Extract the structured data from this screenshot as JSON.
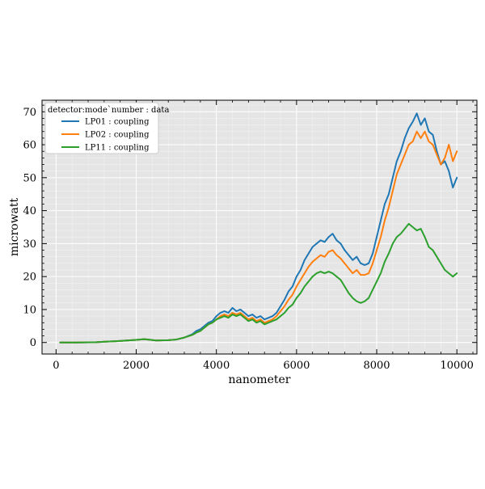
{
  "chart_data": {
    "type": "line",
    "xlabel": "nanometer",
    "ylabel": "microwatt",
    "xlim": [
      -350,
      10500
    ],
    "ylim": [
      -3.5,
      73.5
    ],
    "xticks": [
      0,
      2000,
      4000,
      6000,
      8000,
      10000
    ],
    "yticks": [
      0,
      10,
      20,
      30,
      40,
      50,
      60,
      70
    ],
    "grid": true,
    "legend": {
      "position": "top-left",
      "title": "detector:mode`number : data"
    },
    "series": [
      {
        "name": "LP01 : coupling",
        "color": "#1f77b4",
        "x": [
          100,
          500,
          1000,
          1500,
          2000,
          2200,
          2500,
          2800,
          3000,
          3200,
          3400,
          3500,
          3600,
          3700,
          3800,
          3900,
          4000,
          4100,
          4200,
          4300,
          4400,
          4500,
          4600,
          4700,
          4800,
          4900,
          5000,
          5100,
          5200,
          5300,
          5400,
          5500,
          5600,
          5700,
          5800,
          5900,
          6000,
          6100,
          6200,
          6300,
          6400,
          6500,
          6600,
          6700,
          6800,
          6900,
          7000,
          7100,
          7200,
          7300,
          7400,
          7500,
          7600,
          7700,
          7800,
          7900,
          8000,
          8100,
          8200,
          8300,
          8400,
          8500,
          8600,
          8700,
          8800,
          8900,
          9000,
          9100,
          9200,
          9300,
          9400,
          9500,
          9600,
          9700,
          9800,
          9900,
          10000
        ],
        "values": [
          0,
          0,
          0.1,
          0.4,
          0.8,
          1.0,
          0.6,
          0.7,
          0.9,
          1.5,
          2.5,
          3.5,
          4.0,
          5.0,
          6.0,
          6.5,
          8.0,
          9.0,
          9.5,
          9.0,
          10.5,
          9.5,
          10.0,
          9.0,
          8.0,
          8.5,
          7.5,
          8.0,
          7.0,
          7.5,
          8.0,
          9.0,
          11.0,
          13.0,
          15.5,
          17.0,
          20.0,
          22.0,
          25.0,
          27.0,
          29.0,
          30.0,
          31.0,
          30.5,
          32.0,
          33.0,
          31.0,
          30.0,
          28.0,
          26.5,
          25.0,
          26.0,
          24.0,
          23.5,
          24.0,
          27.0,
          32.0,
          37.0,
          42.0,
          45.0,
          50.0,
          55.0,
          58.0,
          62.0,
          65.0,
          67.0,
          69.5,
          66.0,
          68.0,
          64.0,
          63.0,
          58.0,
          54.0,
          55.0,
          52.0,
          47.0,
          50.0
        ]
      },
      {
        "name": "LP02 : coupling",
        "color": "#ff7f0e",
        "x": [
          100,
          500,
          1000,
          1500,
          2000,
          2200,
          2500,
          2800,
          3000,
          3200,
          3400,
          3500,
          3600,
          3700,
          3800,
          3900,
          4000,
          4100,
          4200,
          4300,
          4400,
          4500,
          4600,
          4700,
          4800,
          4900,
          5000,
          5100,
          5200,
          5300,
          5400,
          5500,
          5600,
          5700,
          5800,
          5900,
          6000,
          6100,
          6200,
          6300,
          6400,
          6500,
          6600,
          6700,
          6800,
          6900,
          7000,
          7100,
          7200,
          7300,
          7400,
          7500,
          7600,
          7700,
          7800,
          7900,
          8000,
          8100,
          8200,
          8300,
          8400,
          8500,
          8600,
          8700,
          8800,
          8900,
          9000,
          9100,
          9200,
          9300,
          9400,
          9500,
          9600,
          9700,
          9800,
          9900,
          10000
        ],
        "values": [
          0,
          0,
          0.1,
          0.4,
          0.8,
          1.0,
          0.6,
          0.7,
          0.9,
          1.5,
          2.3,
          3.0,
          3.5,
          4.5,
          5.5,
          6.0,
          7.0,
          8.0,
          8.5,
          8.0,
          9.0,
          8.5,
          9.0,
          8.0,
          7.0,
          7.5,
          6.5,
          7.0,
          6.0,
          6.5,
          7.0,
          8.0,
          9.5,
          11.0,
          13.0,
          14.5,
          17.0,
          19.0,
          21.0,
          23.0,
          24.5,
          25.5,
          26.5,
          26.0,
          27.5,
          28.0,
          26.5,
          25.5,
          24.0,
          22.5,
          21.0,
          22.0,
          20.5,
          20.5,
          21.0,
          24.0,
          28.0,
          32.0,
          37.0,
          41.0,
          46.0,
          51.0,
          54.0,
          57.0,
          60.0,
          61.0,
          64.0,
          62.0,
          64.0,
          61.0,
          60.0,
          57.0,
          54.0,
          56.0,
          60.0,
          55.0,
          58.0
        ]
      },
      {
        "name": "LP11 : coupling",
        "color": "#2ca02c",
        "x": [
          100,
          500,
          1000,
          1500,
          2000,
          2200,
          2500,
          2800,
          3000,
          3200,
          3400,
          3500,
          3600,
          3700,
          3800,
          3900,
          4000,
          4100,
          4200,
          4300,
          4400,
          4500,
          4600,
          4700,
          4800,
          4900,
          5000,
          5100,
          5200,
          5300,
          5400,
          5500,
          5600,
          5700,
          5800,
          5900,
          6000,
          6100,
          6200,
          6300,
          6400,
          6500,
          6600,
          6700,
          6800,
          6900,
          7000,
          7100,
          7200,
          7300,
          7400,
          7500,
          7600,
          7700,
          7800,
          7900,
          8000,
          8100,
          8200,
          8300,
          8400,
          8500,
          8600,
          8700,
          8800,
          8900,
          9000,
          9100,
          9200,
          9300,
          9400,
          9500,
          9600,
          9700,
          9800,
          9900,
          10000
        ],
        "values": [
          0,
          0,
          0.1,
          0.4,
          0.8,
          1.0,
          0.6,
          0.7,
          0.9,
          1.5,
          2.3,
          3.0,
          3.5,
          4.5,
          5.5,
          6.0,
          7.0,
          7.5,
          8.0,
          7.5,
          8.5,
          8.0,
          8.5,
          7.5,
          6.5,
          7.0,
          6.0,
          6.5,
          5.5,
          6.0,
          6.5,
          7.0,
          8.0,
          9.0,
          10.5,
          11.5,
          13.5,
          15.0,
          17.0,
          18.5,
          20.0,
          21.0,
          21.5,
          21.0,
          21.5,
          21.0,
          20.0,
          19.0,
          17.0,
          15.0,
          13.5,
          12.5,
          12.0,
          12.5,
          13.5,
          16.0,
          18.5,
          21.0,
          24.5,
          27.0,
          30.0,
          32.0,
          33.0,
          34.5,
          36.0,
          35.0,
          34.0,
          34.5,
          32.0,
          29.0,
          28.0,
          26.0,
          24.0,
          22.0,
          21.0,
          20.0,
          21.0
        ]
      }
    ]
  }
}
